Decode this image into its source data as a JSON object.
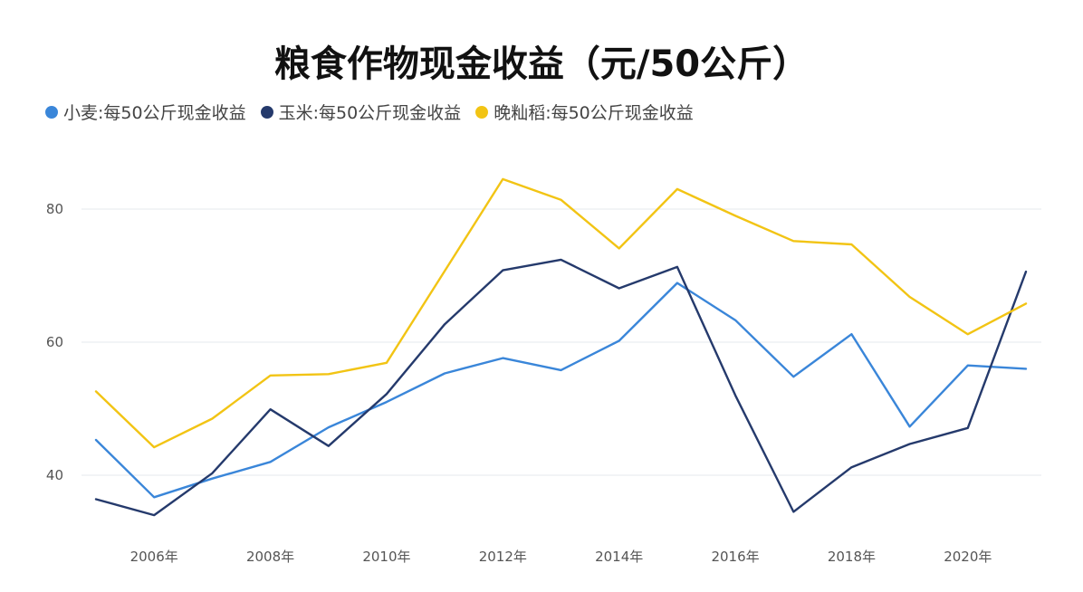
{
  "chart_data": {
    "type": "line",
    "title": "粮食作物现金收益（元/50公斤）",
    "x": [
      2005,
      2006,
      2007,
      2008,
      2009,
      2010,
      2011,
      2012,
      2013,
      2014,
      2015,
      2016,
      2017,
      2018,
      2019,
      2020,
      2021
    ],
    "x_tick_labels": [
      {
        "value": 2006,
        "label": "2006年"
      },
      {
        "value": 2008,
        "label": "2008年"
      },
      {
        "value": 2010,
        "label": "2010年"
      },
      {
        "value": 2012,
        "label": "2012年"
      },
      {
        "value": 2014,
        "label": "2014年"
      },
      {
        "value": 2016,
        "label": "2016年"
      },
      {
        "value": 2018,
        "label": "2018年"
      },
      {
        "value": 2020,
        "label": "2020年"
      }
    ],
    "y_ticks": [
      40,
      60,
      80
    ],
    "ylim": [
      31,
      88
    ],
    "grid": true,
    "legend_position": "top-left",
    "series": [
      {
        "name": "小麦:每50公斤现金收益",
        "color": "#3A86D9",
        "values": [
          45.3,
          36.7,
          39.5,
          42.0,
          47.2,
          51.0,
          55.3,
          57.6,
          55.8,
          60.2,
          68.9,
          63.3,
          54.8,
          61.2,
          47.3,
          56.5,
          56.0
        ]
      },
      {
        "name": "玉米:每50公斤现金收益",
        "color": "#253A6C",
        "values": [
          36.4,
          34.0,
          40.3,
          49.9,
          44.4,
          52.2,
          62.7,
          70.8,
          72.4,
          68.1,
          71.3,
          52.0,
          34.5,
          41.2,
          44.7,
          47.1,
          70.6
        ]
      },
      {
        "name": "晚籼稻:每50公斤现金收益",
        "color": "#F2C414",
        "values": [
          52.6,
          44.2,
          48.5,
          55.0,
          55.2,
          56.9,
          70.7,
          84.5,
          81.4,
          74.1,
          83.0,
          79.0,
          75.2,
          74.7,
          66.8,
          61.2,
          65.8
        ]
      }
    ]
  }
}
